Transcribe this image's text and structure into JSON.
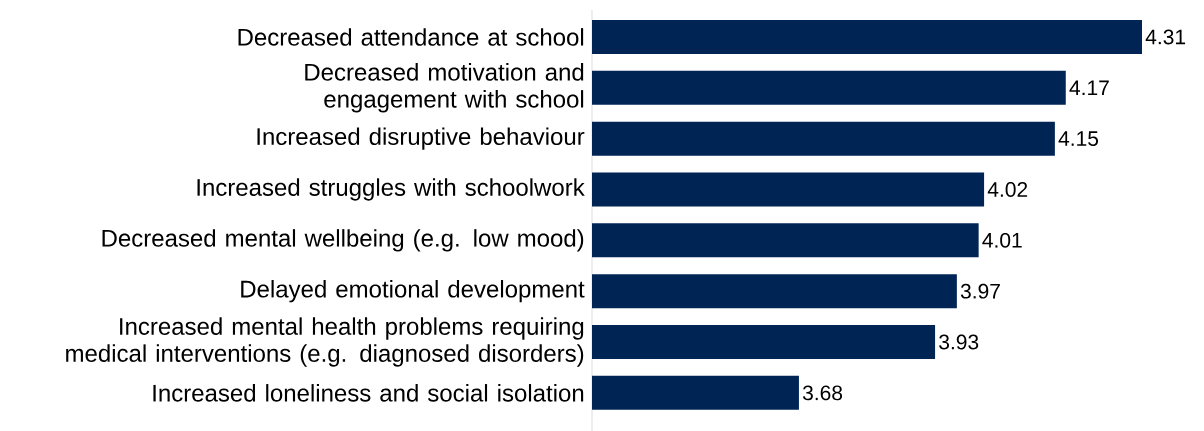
{
  "chart_data": {
    "type": "bar",
    "orientation": "horizontal",
    "categories": [
      "Decreased attendance at school",
      "Decreased motivation and engagement with school",
      "Increased disruptive behaviour",
      "Increased struggles with schoolwork",
      "Decreased mental wellbeing (e.g. low mood)",
      "Delayed emotional development",
      "Increased mental health problems requiring medical interventions (e.g. diagnosed disorders)",
      "Increased loneliness and social isolation"
    ],
    "values": [
      4.31,
      4.17,
      4.15,
      4.02,
      4.01,
      3.97,
      3.93,
      3.68
    ],
    "color": "#002554",
    "xlim": [
      3.3,
      4.31
    ],
    "data_labels": true,
    "tick_labels": "y"
  }
}
